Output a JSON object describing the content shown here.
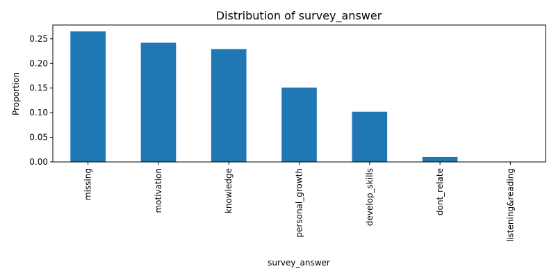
{
  "chart_data": {
    "type": "bar",
    "title": "Distribution of survey_answer",
    "xlabel": "survey_answer",
    "ylabel": "Proportion",
    "categories": [
      "missing",
      "motivation",
      "knowledge",
      "personal_growth",
      "develop_skills",
      "dont_relate",
      "listening&reading"
    ],
    "values": [
      0.265,
      0.242,
      0.229,
      0.151,
      0.102,
      0.01,
      0.0005
    ],
    "ylim": [
      0,
      0.278
    ],
    "yticks": [
      "0.00",
      "0.05",
      "0.10",
      "0.15",
      "0.20",
      "0.25"
    ],
    "bar_color": "#1f77b4",
    "grid": false,
    "legend": "none"
  }
}
